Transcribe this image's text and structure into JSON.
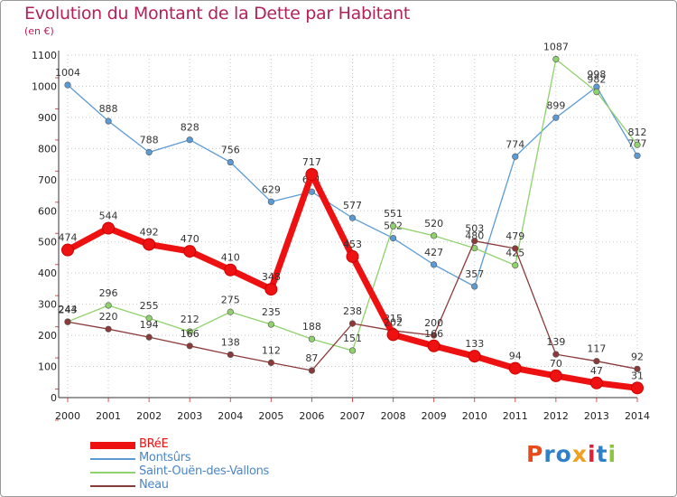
{
  "title": "Evolution du Montant de la Dette par Habitant",
  "subtitle": "(en €)",
  "logo": {
    "text": "Proxiti",
    "letter_colors": [
      "#e84a1a",
      "#2f7fc9",
      "#2f7fc9",
      "#f0a020",
      "#e0203a",
      "#2f7fc9",
      "#8cc63f"
    ]
  },
  "chart_data": {
    "type": "line",
    "title": "Evolution du Montant de la Dette par Habitant",
    "ylabel": "(en €)",
    "xlabel": "",
    "x": [
      "2000",
      "2001",
      "2002",
      "2003",
      "2004",
      "2005",
      "2006",
      "2007",
      "2008",
      "2009",
      "2010",
      "2011",
      "2012",
      "2013",
      "2014"
    ],
    "ylim": [
      0,
      1100
    ],
    "yticks": [
      "0",
      "100",
      "200",
      "300",
      "400",
      "500",
      "600",
      "700",
      "800",
      "900",
      "1000",
      "1100"
    ],
    "grid": true,
    "legend_position": "bottom-left",
    "series": [
      {
        "name": "Montsûrs",
        "color": "#5b9bd5",
        "values": [
          1004,
          888,
          788,
          828,
          756,
          629,
          661,
          577,
          512,
          427,
          357,
          774,
          899,
          998,
          777
        ],
        "labels": [
          "1004",
          "888",
          "788",
          "828",
          "756",
          "629",
          "661",
          "577",
          "512",
          "427",
          "357",
          "774",
          "899",
          "998",
          "777"
        ]
      },
      {
        "name": "Saint-Ouën-des-Vallons",
        "color": "#8fd16a",
        "values": [
          244,
          296,
          255,
          212,
          275,
          235,
          188,
          151,
          551,
          520,
          480,
          425,
          1087,
          982,
          812
        ],
        "labels": [
          "244",
          "296",
          "255",
          "212",
          "275",
          "235",
          "188",
          "151",
          "551",
          "520",
          "480",
          "425",
          "1087",
          "982",
          "812"
        ]
      },
      {
        "name": "Neau",
        "color": "#8b3a3a",
        "values": [
          243,
          220,
          194,
          166,
          138,
          112,
          87,
          238,
          215,
          200,
          503,
          479,
          139,
          117,
          92
        ],
        "labels": [
          "243",
          "220",
          "194",
          "166",
          "138",
          "112",
          "87",
          "238",
          "215",
          "200",
          "503",
          "479",
          "139",
          "117",
          "92"
        ]
      },
      {
        "name": "BRéE",
        "color": "#ee1111",
        "values": [
          474,
          544,
          492,
          470,
          410,
          348,
          717,
          453,
          202,
          166,
          133,
          94,
          70,
          47,
          31
        ],
        "labels": [
          "474",
          "544",
          "492",
          "470",
          "410",
          "348",
          "717",
          "453",
          "202",
          "166",
          "133",
          "94",
          "70",
          "47",
          "31"
        ]
      }
    ],
    "legend": [
      {
        "name": "BRéE",
        "color": "#ee1111",
        "text_color": "#ee1111"
      },
      {
        "name": "Montsûrs",
        "color": "#5b9bd5",
        "text_color": "#4a86c8"
      },
      {
        "name": "Saint-Ouën-des-Vallons",
        "color": "#8fd16a",
        "text_color": "#4a86c8"
      },
      {
        "name": "Neau",
        "color": "#8b3a3a",
        "text_color": "#4a86c8"
      }
    ]
  }
}
